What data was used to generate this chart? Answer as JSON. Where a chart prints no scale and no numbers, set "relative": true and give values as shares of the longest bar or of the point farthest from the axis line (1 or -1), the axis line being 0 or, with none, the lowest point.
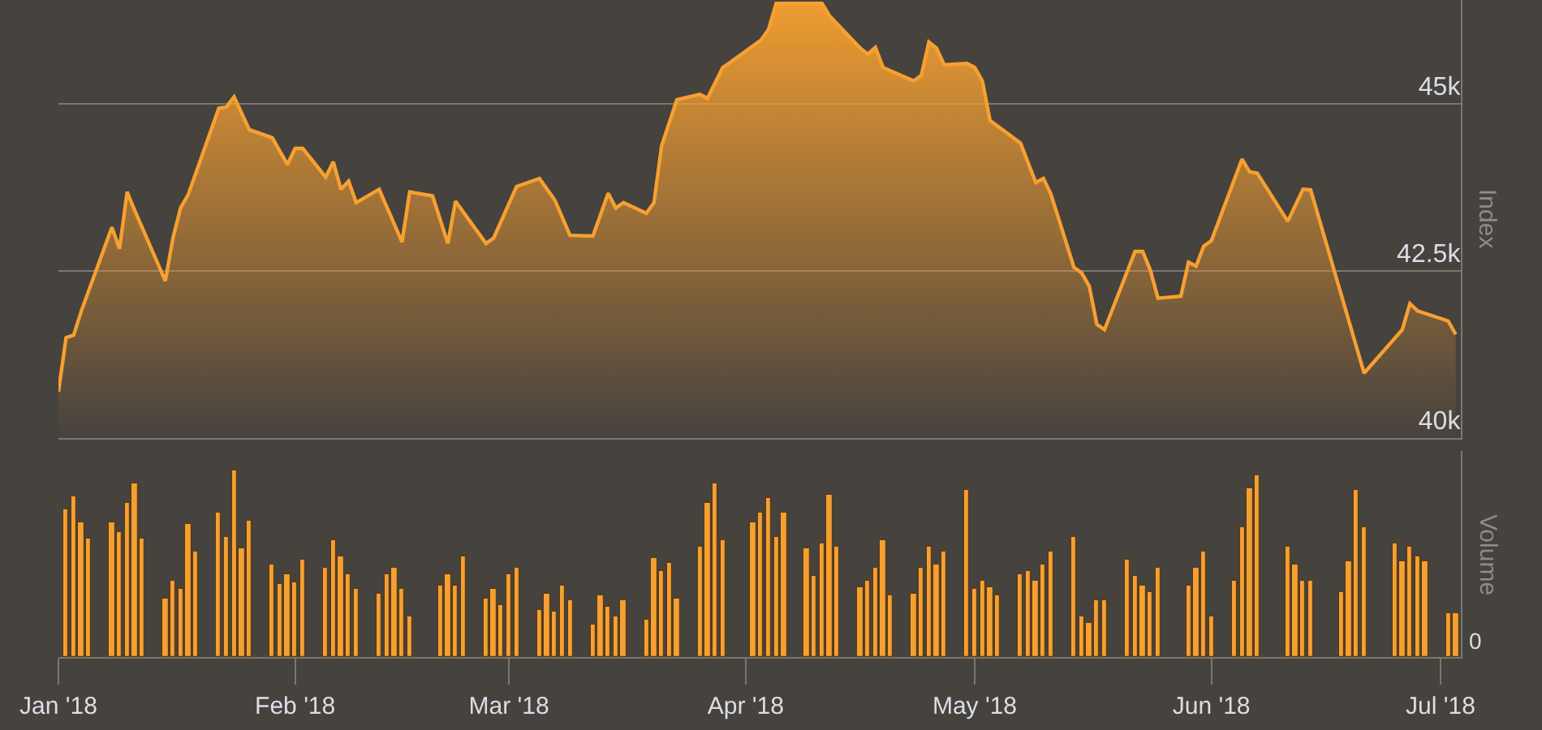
{
  "chart_data": [
    {
      "type": "area",
      "ylabel": "Index",
      "color": "#f7a030",
      "grid": "y",
      "tick_labels": "y",
      "xlim": [
        "2018-01-01",
        "2018-07-03T16:00"
      ],
      "ylim": [
        40000,
        46550
      ],
      "yticks": [
        {
          "value": 40000,
          "label": "40k"
        },
        {
          "value": 42500,
          "label": "42.5k"
        },
        {
          "value": 45000,
          "label": "45k"
        }
      ],
      "x": [
        "2018-01-01",
        "2018-01-02",
        "2018-01-03",
        "2018-01-04",
        "2018-01-08",
        "2018-01-09",
        "2018-01-10",
        "2018-01-11",
        "2018-01-15",
        "2018-01-16",
        "2018-01-17",
        "2018-01-18",
        "2018-01-22",
        "2018-01-23",
        "2018-01-24",
        "2018-01-26",
        "2018-01-29",
        "2018-01-31",
        "2018-02-01",
        "2018-02-02",
        "2018-02-05",
        "2018-02-06",
        "2018-02-07",
        "2018-02-08",
        "2018-02-09",
        "2018-02-12",
        "2018-02-15",
        "2018-02-16",
        "2018-02-19",
        "2018-02-21",
        "2018-02-22",
        "2018-02-26",
        "2018-02-27",
        "2018-03-02",
        "2018-03-05",
        "2018-03-07",
        "2018-03-09",
        "2018-03-12",
        "2018-03-14",
        "2018-03-15",
        "2018-03-16",
        "2018-03-19",
        "2018-03-20",
        "2018-03-21",
        "2018-03-23",
        "2018-03-26",
        "2018-03-27",
        "2018-03-29",
        "2018-03-30",
        "2018-04-03",
        "2018-04-04",
        "2018-04-05",
        "2018-04-06",
        "2018-04-09",
        "2018-04-10",
        "2018-04-11",
        "2018-04-12",
        "2018-04-16",
        "2018-04-17",
        "2018-04-18",
        "2018-04-19",
        "2018-04-23",
        "2018-04-24",
        "2018-04-25",
        "2018-04-26",
        "2018-04-27",
        "2018-04-30",
        "2018-05-01",
        "2018-05-02",
        "2018-05-03",
        "2018-05-07",
        "2018-05-09",
        "2018-05-10",
        "2018-05-11",
        "2018-05-14",
        "2018-05-15",
        "2018-05-16",
        "2018-05-17",
        "2018-05-18",
        "2018-05-22",
        "2018-05-23",
        "2018-05-24",
        "2018-05-25",
        "2018-05-28",
        "2018-05-29",
        "2018-05-30",
        "2018-05-31",
        "2018-06-01",
        "2018-06-05",
        "2018-06-06",
        "2018-06-07",
        "2018-06-11",
        "2018-06-13",
        "2018-06-14",
        "2018-06-21",
        "2018-06-26",
        "2018-06-27",
        "2018-06-28",
        "2018-07-02",
        "2018-07-03"
      ],
      "values": [
        40690,
        41500,
        41540,
        41900,
        43150,
        42830,
        43680,
        43400,
        42350,
        42990,
        43440,
        43640,
        44930,
        44950,
        45100,
        44610,
        44490,
        44090,
        44330,
        44330,
        43900,
        44130,
        43720,
        43840,
        43520,
        43720,
        42930,
        43680,
        43620,
        42910,
        43540,
        42910,
        42990,
        43760,
        43880,
        43560,
        43030,
        43020,
        43660,
        43440,
        43520,
        43360,
        43520,
        44370,
        45060,
        45140,
        45080,
        45540,
        45620,
        45950,
        46110,
        46500,
        46500,
        46500,
        46500,
        46500,
        46310,
        45830,
        45740,
        45840,
        45540,
        45340,
        45420,
        45920,
        45830,
        45580,
        45600,
        45540,
        45340,
        44750,
        44410,
        43820,
        43880,
        43640,
        42550,
        42470,
        42270,
        41700,
        41620,
        42790,
        42790,
        42510,
        42090,
        42120,
        42630,
        42570,
        42870,
        42950,
        44170,
        43980,
        43960,
        43240,
        43720,
        43710,
        40970,
        41620,
        42010,
        41900,
        41750,
        41550
      ]
    },
    {
      "type": "bar",
      "ylabel": "Volume",
      "color": "#f5a033",
      "relative": true,
      "annotations": [
        "0"
      ],
      "xlim": [
        "2018-01-01",
        "2018-07-03T16:00"
      ],
      "xticks": [
        {
          "value": "2018-01-01",
          "label": "Jan '18"
        },
        {
          "value": "2018-02-01",
          "label": "Feb '18"
        },
        {
          "value": "2018-03-01",
          "label": "Mar '18"
        },
        {
          "value": "2018-04-01",
          "label": "Apr '18"
        },
        {
          "value": "2018-05-01",
          "label": "May '18"
        },
        {
          "value": "2018-06-01",
          "label": "Jun '18"
        },
        {
          "value": "2018-07-01",
          "label": "Jul '18"
        }
      ],
      "x": [
        "2018-01-02",
        "2018-01-03",
        "2018-01-04",
        "2018-01-05",
        "2018-01-08",
        "2018-01-09",
        "2018-01-10",
        "2018-01-11",
        "2018-01-12",
        "2018-01-15",
        "2018-01-16",
        "2018-01-17",
        "2018-01-18",
        "2018-01-19",
        "2018-01-22",
        "2018-01-23",
        "2018-01-24",
        "2018-01-25",
        "2018-01-26",
        "2018-01-29",
        "2018-01-30",
        "2018-01-31",
        "2018-02-01",
        "2018-02-02",
        "2018-02-05",
        "2018-02-06",
        "2018-02-07",
        "2018-02-08",
        "2018-02-09",
        "2018-02-12",
        "2018-02-13",
        "2018-02-14",
        "2018-02-15",
        "2018-02-16",
        "2018-02-20",
        "2018-02-21",
        "2018-02-22",
        "2018-02-23",
        "2018-02-26",
        "2018-02-27",
        "2018-02-28",
        "2018-03-01",
        "2018-03-02",
        "2018-03-05",
        "2018-03-06",
        "2018-03-07",
        "2018-03-08",
        "2018-03-09",
        "2018-03-12",
        "2018-03-13",
        "2018-03-14",
        "2018-03-15",
        "2018-03-16",
        "2018-03-19",
        "2018-03-20",
        "2018-03-21",
        "2018-03-22",
        "2018-03-23",
        "2018-03-26",
        "2018-03-27",
        "2018-03-28",
        "2018-03-29",
        "2018-04-02",
        "2018-04-03",
        "2018-04-04",
        "2018-04-05",
        "2018-04-06",
        "2018-04-09",
        "2018-04-10",
        "2018-04-11",
        "2018-04-12",
        "2018-04-13",
        "2018-04-16",
        "2018-04-17",
        "2018-04-18",
        "2018-04-19",
        "2018-04-20",
        "2018-04-23",
        "2018-04-24",
        "2018-04-25",
        "2018-04-26",
        "2018-04-27",
        "2018-04-30",
        "2018-05-01",
        "2018-05-02",
        "2018-05-03",
        "2018-05-04",
        "2018-05-07",
        "2018-05-08",
        "2018-05-09",
        "2018-05-10",
        "2018-05-11",
        "2018-05-14",
        "2018-05-15",
        "2018-05-16",
        "2018-05-17",
        "2018-05-18",
        "2018-05-21",
        "2018-05-22",
        "2018-05-23",
        "2018-05-24",
        "2018-05-25",
        "2018-05-29",
        "2018-05-30",
        "2018-05-31",
        "2018-06-01",
        "2018-06-04",
        "2018-06-05",
        "2018-06-06",
        "2018-06-07",
        "2018-06-11",
        "2018-06-12",
        "2018-06-13",
        "2018-06-14",
        "2018-06-18",
        "2018-06-19",
        "2018-06-20",
        "2018-06-21",
        "2018-06-25",
        "2018-06-26",
        "2018-06-27",
        "2018-06-28",
        "2018-06-29",
        "2018-07-02",
        "2018-07-03"
      ],
      "values": [
        0.79,
        0.86,
        0.72,
        0.63,
        0.72,
        0.67,
        0.82,
        0.93,
        0.63,
        0.31,
        0.41,
        0.36,
        0.71,
        0.56,
        0.77,
        0.64,
        1,
        0.58,
        0.73,
        0.49,
        0.39,
        0.44,
        0.4,
        0.52,
        0.48,
        0.62,
        0.54,
        0.44,
        0.36,
        0.34,
        0.44,
        0.48,
        0.36,
        0.22,
        0.38,
        0.44,
        0.38,
        0.54,
        0.31,
        0.36,
        0.28,
        0.44,
        0.48,
        0.25,
        0.34,
        0.24,
        0.38,
        0.3,
        0.17,
        0.33,
        0.27,
        0.22,
        0.3,
        0.2,
        0.53,
        0.46,
        0.5,
        0.31,
        0.59,
        0.82,
        0.93,
        0.62,
        0.72,
        0.77,
        0.85,
        0.64,
        0.77,
        0.58,
        0.43,
        0.61,
        0.87,
        0.59,
        0.37,
        0.41,
        0.48,
        0.62,
        0.33,
        0.34,
        0.48,
        0.59,
        0.49,
        0.56,
        0.89,
        0.36,
        0.41,
        0.37,
        0.33,
        0.44,
        0.46,
        0.41,
        0.49,
        0.56,
        0.64,
        0.22,
        0.18,
        0.3,
        0.3,
        0.52,
        0.43,
        0.38,
        0.35,
        0.48,
        0.38,
        0.48,
        0.56,
        0.22,
        0.41,
        0.69,
        0.9,
        0.97,
        0.59,
        0.49,
        0.41,
        0.41,
        0.35,
        0.51,
        0.89,
        0.69,
        0.61,
        0.51,
        0.59,
        0.54,
        0.51,
        0.23,
        0.23
      ]
    }
  ]
}
